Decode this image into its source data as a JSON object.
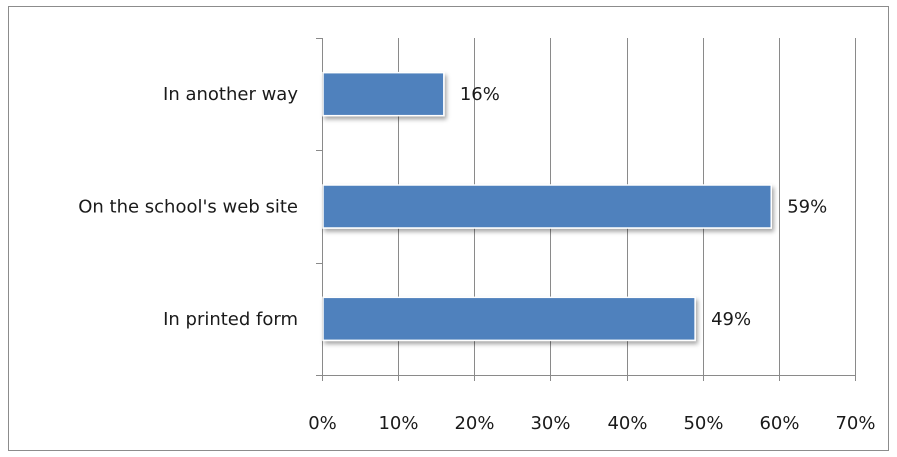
{
  "chart_data": {
    "type": "bar",
    "orientation": "horizontal",
    "categories": [
      "In another way",
      "On the school's web site",
      "In printed form"
    ],
    "values": [
      16,
      59,
      49
    ],
    "data_labels": [
      "16%",
      "59%",
      "49%"
    ],
    "xlim": [
      0,
      70
    ],
    "x_ticks": [
      0,
      10,
      20,
      30,
      40,
      50,
      60,
      70
    ],
    "x_tick_labels": [
      "0%",
      "10%",
      "20%",
      "30%",
      "40%",
      "50%",
      "60%",
      "70%"
    ],
    "title": "",
    "xlabel": "",
    "ylabel": "",
    "grid": "vertical",
    "legend": "none",
    "bar_color": "#4F81BD",
    "bar_edge_color": "#3A6BA5"
  }
}
